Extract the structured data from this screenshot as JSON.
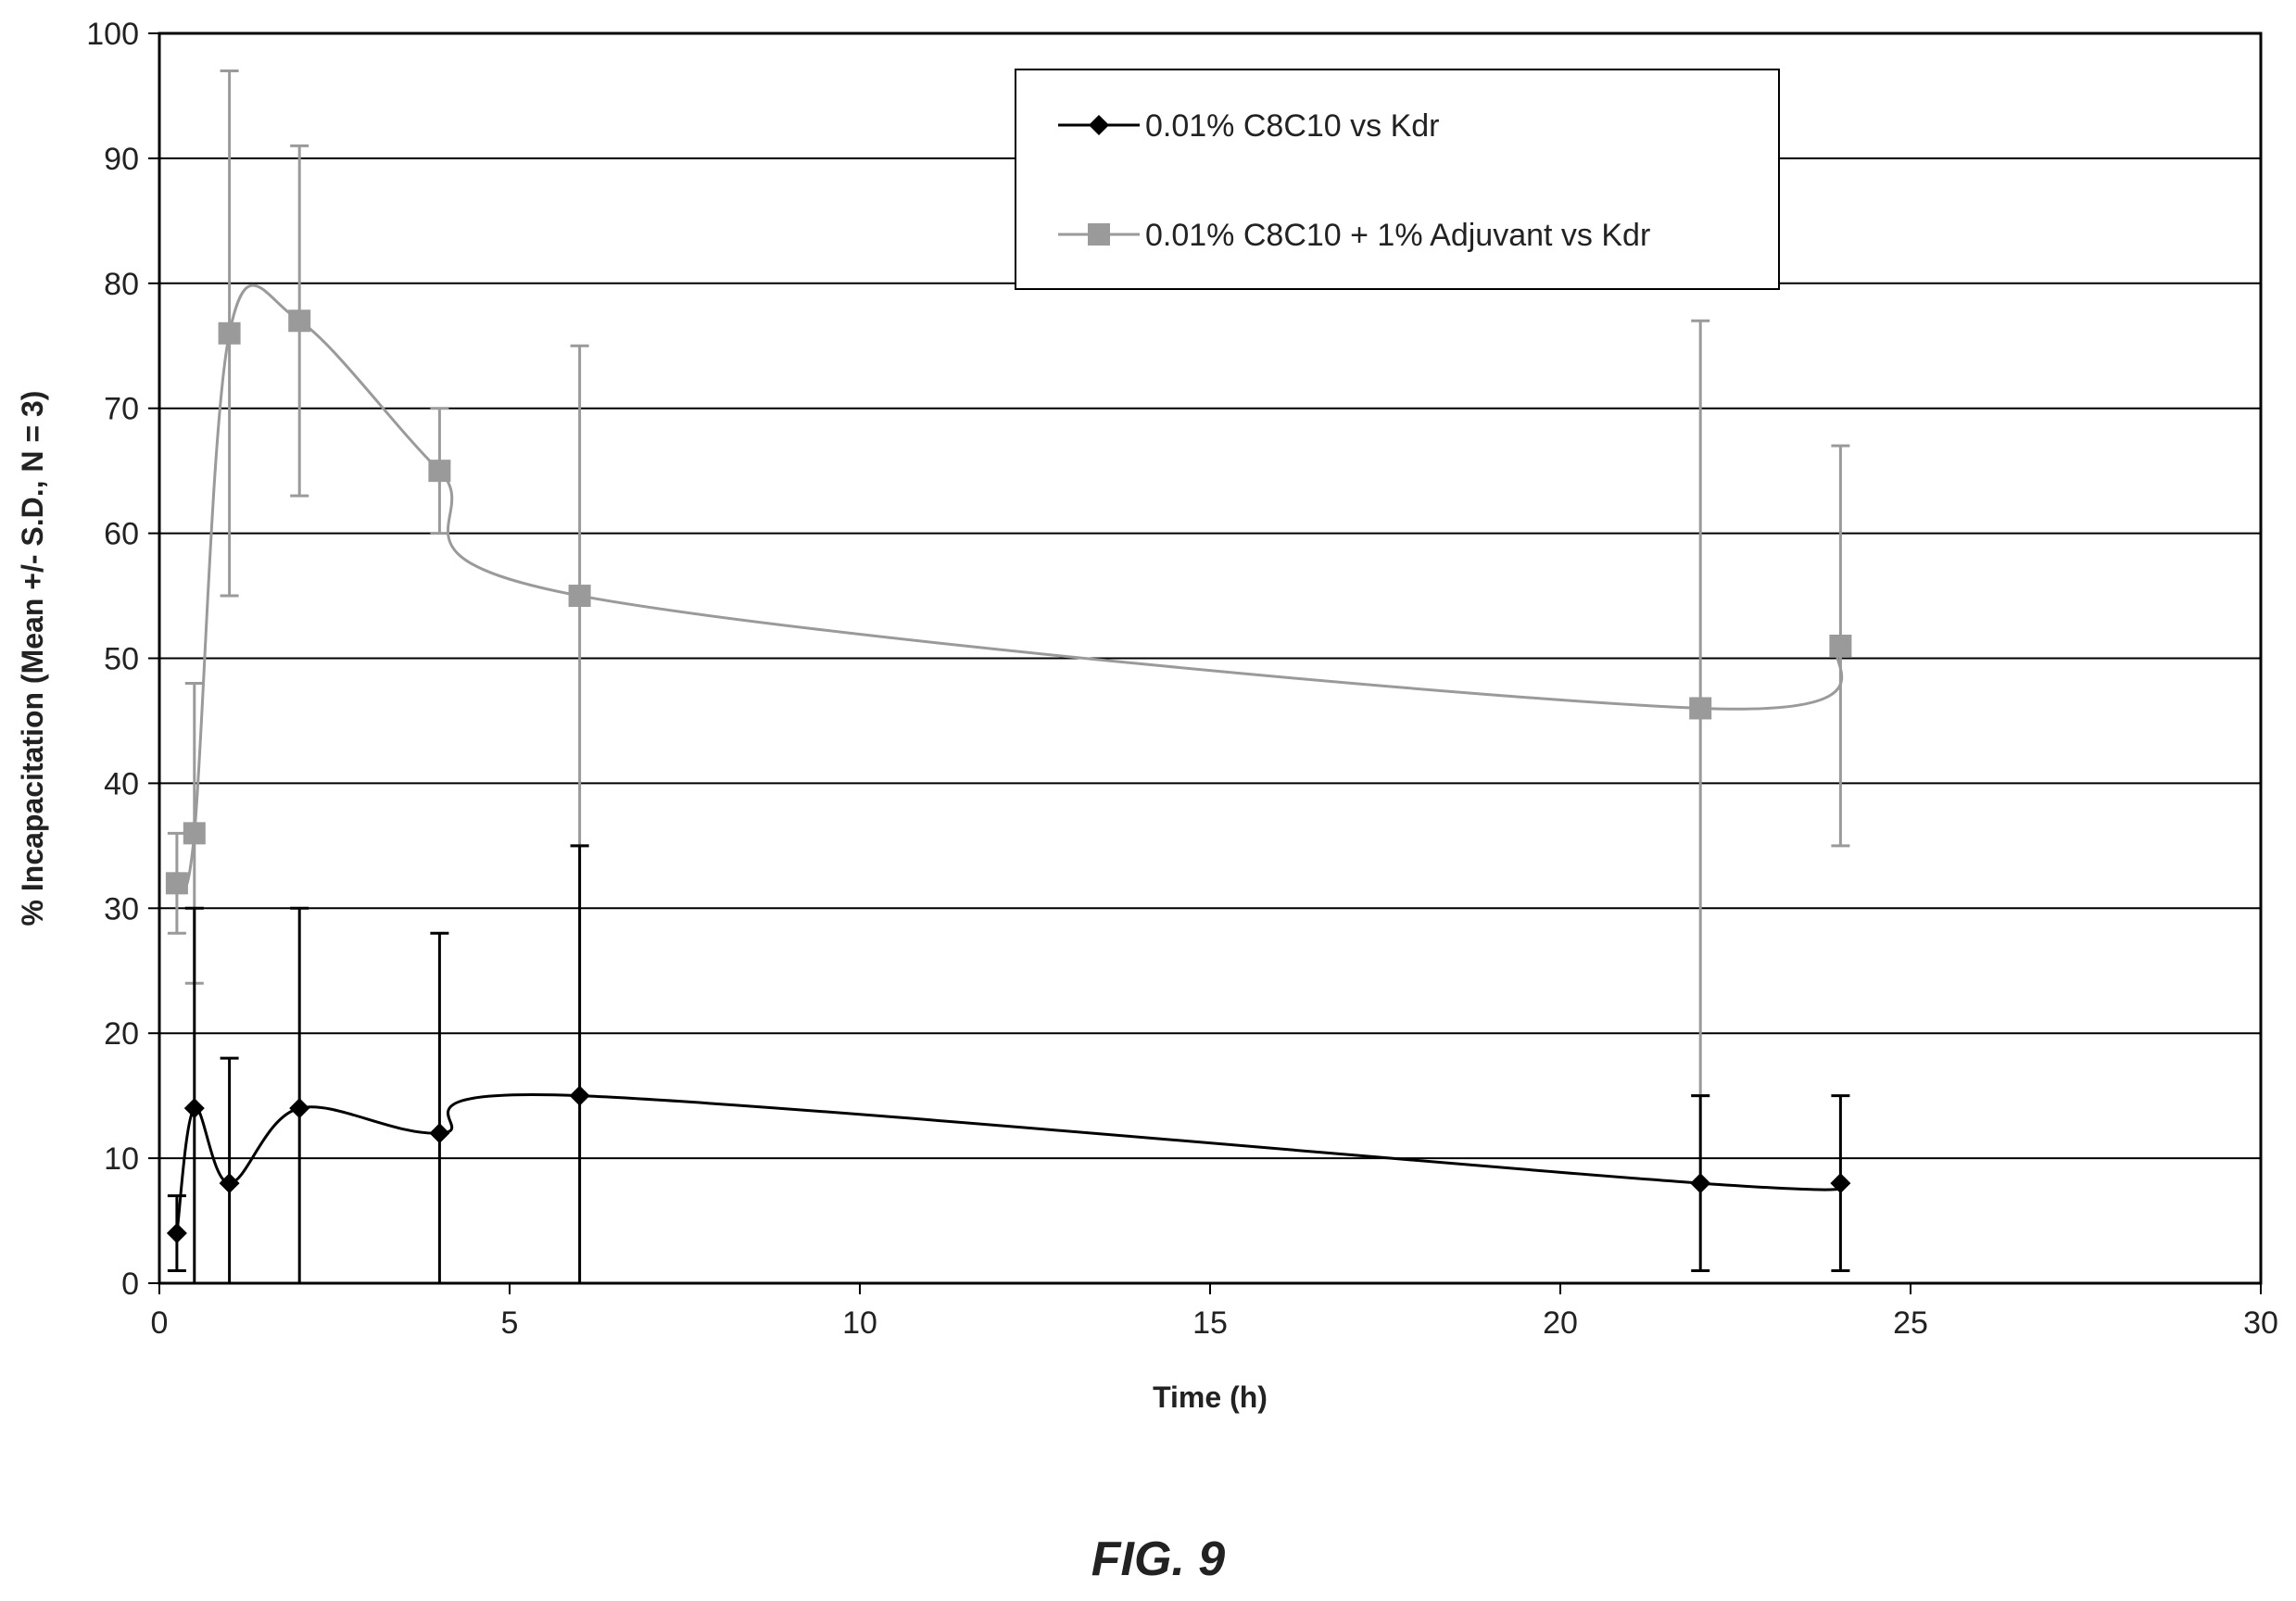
{
  "figure_label": "FIG. 9",
  "chart_data": {
    "type": "line",
    "title": "",
    "xlabel": "Time (h)",
    "ylabel": "% Incapacitation (Mean +/- S.D., N = 3)",
    "xlim": [
      0,
      30
    ],
    "ylim": [
      0,
      100
    ],
    "xticks": [
      0,
      5,
      10,
      15,
      20,
      25,
      30
    ],
    "yticks": [
      0,
      10,
      20,
      30,
      40,
      50,
      60,
      70,
      80,
      90,
      100
    ],
    "grid": "horizontal",
    "legend_position": "top-right",
    "series": [
      {
        "name": "0.01% C8C10 vs Kdr",
        "color": "#000000",
        "marker": "diamond",
        "x": [
          0.25,
          0.5,
          1,
          2,
          4,
          6,
          22,
          24
        ],
        "y": [
          4,
          14,
          8,
          14,
          12,
          15,
          8,
          8
        ],
        "err_low": [
          1,
          0,
          0,
          0,
          0,
          0,
          1,
          1
        ],
        "err_high": [
          7,
          30,
          18,
          30,
          28,
          35,
          15,
          15
        ]
      },
      {
        "name": "0.01% C8C10 + 1% Adjuvant vs Kdr",
        "color": "#9a9a9a",
        "marker": "square",
        "x": [
          0.25,
          0.5,
          1,
          2,
          4,
          6,
          22,
          24
        ],
        "y": [
          32,
          36,
          76,
          77,
          65,
          55,
          46,
          51
        ],
        "err_low": [
          28,
          24,
          55,
          63,
          60,
          35,
          15,
          35
        ],
        "err_high": [
          36,
          48,
          97,
          91,
          70,
          75,
          77,
          67
        ]
      }
    ]
  }
}
